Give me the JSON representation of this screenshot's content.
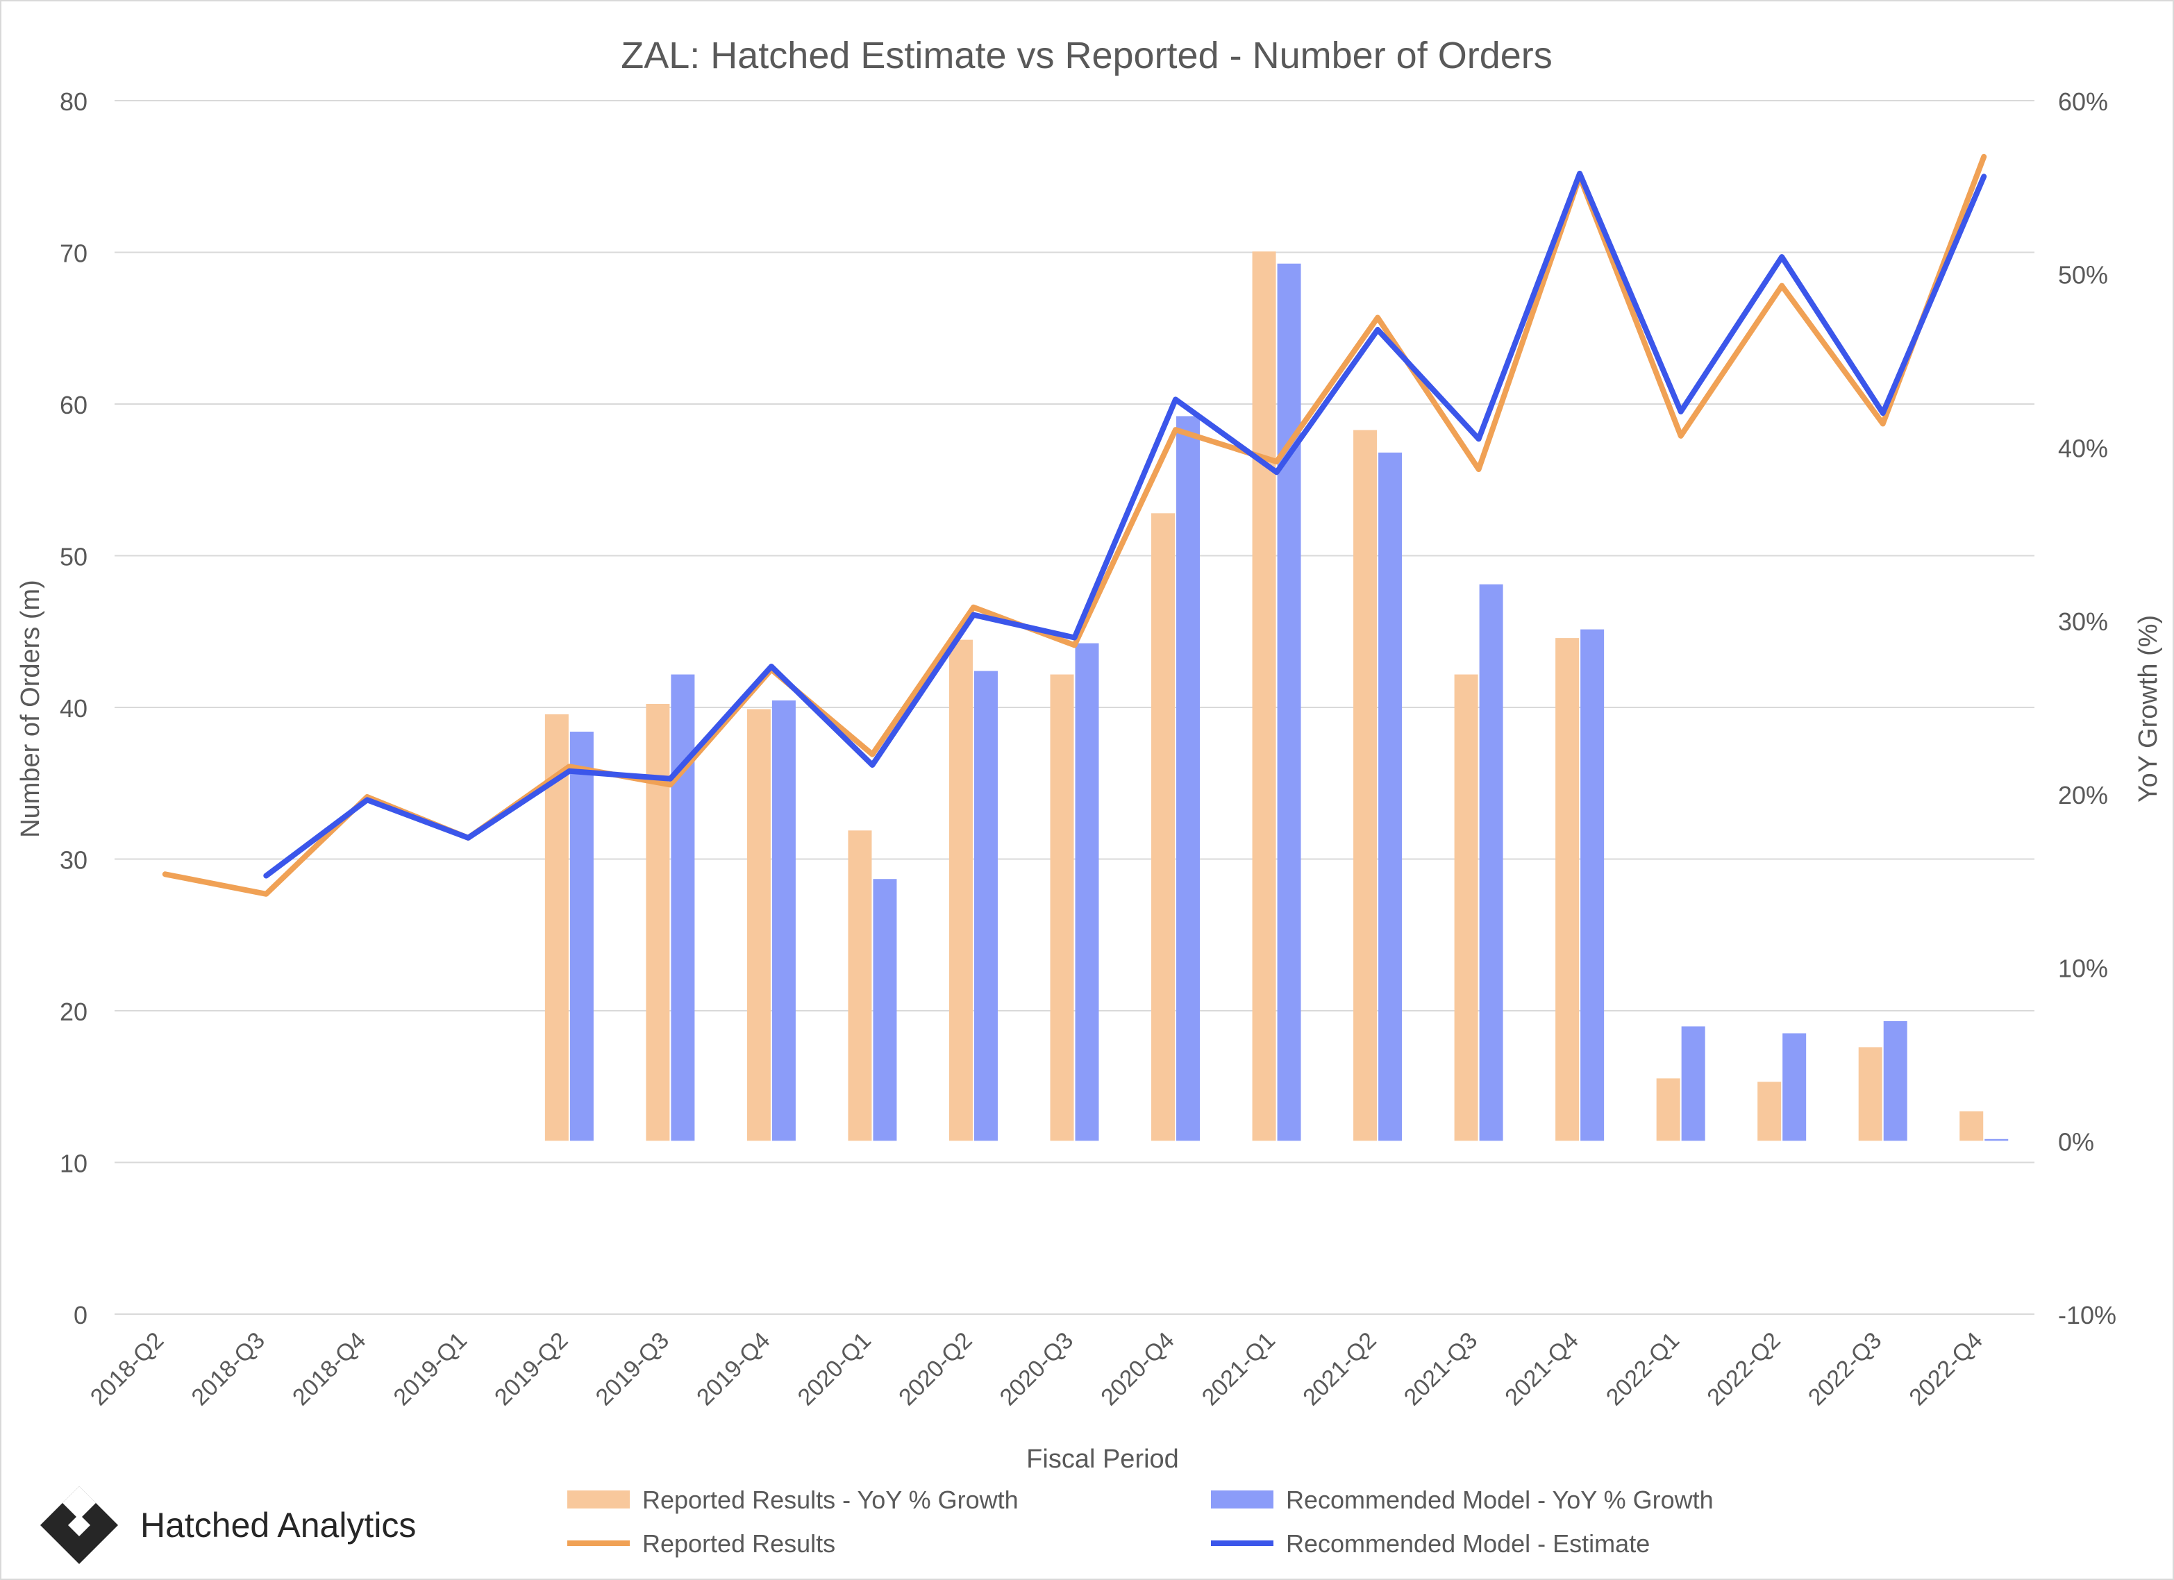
{
  "brand": {
    "name": "Hatched Analytics",
    "logo_icon": "hatched-diamond-logo-icon"
  },
  "chart_data": {
    "type": "bar+line",
    "title": "ZAL: Hatched Estimate vs Reported - Number of Orders",
    "xlabel": "Fiscal Period",
    "ylabel": "Number of Orders (m)",
    "y2label": "YoY Growth (%)",
    "ylim": [
      0,
      80
    ],
    "yticks": [
      "0",
      "10",
      "20",
      "30",
      "40",
      "50",
      "60",
      "70",
      "80"
    ],
    "y2lim": [
      -10,
      60
    ],
    "y2ticks": [
      "-10%",
      "0%",
      "10%",
      "20%",
      "30%",
      "40%",
      "50%",
      "60%"
    ],
    "grid": true,
    "legend_position": "bottom",
    "categories": [
      "2018-Q2",
      "2018-Q3",
      "2018-Q4",
      "2019-Q1",
      "2019-Q2",
      "2019-Q3",
      "2019-Q4",
      "2020-Q1",
      "2020-Q2",
      "2020-Q3",
      "2020-Q4",
      "2021-Q1",
      "2021-Q2",
      "2021-Q3",
      "2021-Q4",
      "2022-Q1",
      "2022-Q2",
      "2022-Q3",
      "2022-Q4"
    ],
    "bar_series": [
      {
        "name": "Reported Results - YoY % Growth",
        "color": "#f8c89c",
        "axis": "right",
        "values": [
          null,
          null,
          null,
          null,
          24.6,
          25.2,
          24.9,
          17.9,
          28.9,
          26.9,
          36.2,
          51.3,
          41.0,
          26.9,
          29.0,
          3.6,
          3.4,
          5.4,
          1.7
        ]
      },
      {
        "name": "Recommended Model - YoY % Growth",
        "color": "#8b9cf9",
        "axis": "right",
        "values": [
          null,
          null,
          null,
          null,
          23.6,
          26.9,
          25.4,
          15.1,
          27.1,
          28.7,
          41.8,
          50.6,
          39.7,
          32.1,
          29.5,
          6.6,
          6.2,
          6.9,
          0.1
        ]
      }
    ],
    "line_series": [
      {
        "name": "Reported Results",
        "color": "#f0a155",
        "axis": "left",
        "values": [
          29.0,
          27.7,
          34.1,
          31.4,
          36.1,
          34.9,
          42.5,
          36.9,
          46.6,
          44.1,
          58.3,
          56.2,
          65.7,
          55.7,
          75.0,
          57.9,
          67.8,
          58.7,
          76.3
        ]
      },
      {
        "name": "Recommended Model - Estimate",
        "color": "#3b56ea",
        "axis": "left",
        "values": [
          null,
          28.9,
          33.9,
          31.4,
          35.8,
          35.3,
          42.7,
          36.2,
          46.1,
          44.6,
          60.3,
          55.5,
          64.9,
          57.7,
          75.2,
          59.5,
          69.7,
          59.4,
          75.0
        ]
      }
    ]
  }
}
